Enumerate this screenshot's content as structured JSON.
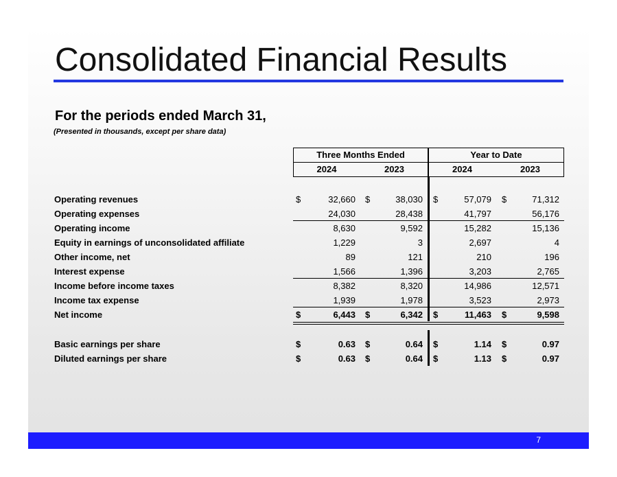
{
  "slide": {
    "title": "Consolidated Financial Results",
    "subtitle": "For the periods ended March 31,",
    "note": "(Presented in thousands, except per share data)",
    "page_number": "7"
  },
  "table": {
    "group_headers": [
      "Three Months Ended",
      "Year to Date"
    ],
    "year_headers": [
      "2024",
      "2023",
      "2024",
      "2023"
    ],
    "currency_symbol": "$",
    "rows": [
      {
        "label": "Operating revenues",
        "values": [
          "32,660",
          "38,030",
          "57,079",
          "71,312"
        ],
        "dollar": true,
        "bold": false
      },
      {
        "label": "Operating expenses",
        "values": [
          "24,030",
          "28,438",
          "41,797",
          "56,176"
        ],
        "dollar": false,
        "bold": false
      },
      {
        "label": "Operating income",
        "values": [
          "8,630",
          "9,592",
          "15,282",
          "15,136"
        ],
        "dollar": false,
        "bold": false
      },
      {
        "label": "Equity in earnings of unconsolidated affiliate",
        "values": [
          "1,229",
          "3",
          "2,697",
          "4"
        ],
        "dollar": false,
        "bold": false
      },
      {
        "label": "Other income, net",
        "values": [
          "89",
          "121",
          "210",
          "196"
        ],
        "dollar": false,
        "bold": false
      },
      {
        "label": "Interest expense",
        "values": [
          "1,566",
          "1,396",
          "3,203",
          "2,765"
        ],
        "dollar": false,
        "bold": false
      },
      {
        "label": "Income before income taxes",
        "values": [
          "8,382",
          "8,320",
          "14,986",
          "12,571"
        ],
        "dollar": false,
        "bold": false
      },
      {
        "label": "Income tax expense",
        "values": [
          "1,939",
          "1,978",
          "3,523",
          "2,973"
        ],
        "dollar": false,
        "bold": false
      },
      {
        "label": "Net income",
        "values": [
          "6,443",
          "6,342",
          "11,463",
          "9,598"
        ],
        "dollar": true,
        "bold": true
      },
      {
        "label": "Basic earnings per share",
        "values": [
          "0.63",
          "0.64",
          "1.14",
          "0.97"
        ],
        "dollar": true,
        "bold": true
      },
      {
        "label": "Diluted earnings per share",
        "values": [
          "0.63",
          "0.64",
          "1.13",
          "0.97"
        ],
        "dollar": true,
        "bold": true
      }
    ]
  },
  "colors": {
    "accent_blue": "#2338e0",
    "footer_blue": "#1d1dff"
  }
}
